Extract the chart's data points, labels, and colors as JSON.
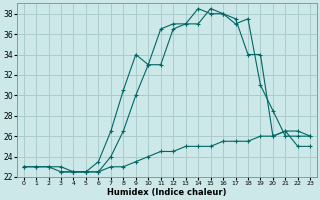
{
  "xlabel": "Humidex (Indice chaleur)",
  "ylabel": "",
  "bg_color": "#cce8e8",
  "grid_color": "#aacccc",
  "line_color": "#006666",
  "xlim": [
    -0.5,
    23.5
  ],
  "ylim": [
    22,
    39
  ],
  "xticks": [
    0,
    1,
    2,
    3,
    4,
    5,
    6,
    7,
    8,
    9,
    10,
    11,
    12,
    13,
    14,
    15,
    16,
    17,
    18,
    19,
    20,
    21,
    22,
    23
  ],
  "yticks": [
    22,
    24,
    26,
    28,
    30,
    32,
    34,
    36,
    38
  ],
  "line1_x": [
    0,
    1,
    2,
    3,
    4,
    5,
    6,
    7,
    8,
    9,
    10,
    11,
    12,
    13,
    14,
    15,
    16,
    17,
    18,
    19,
    20,
    21,
    22,
    23
  ],
  "line1_y": [
    23,
    23,
    23,
    23,
    22.5,
    22.5,
    22.5,
    23,
    23,
    23.5,
    24,
    24.5,
    24.5,
    25,
    25,
    25,
    25.5,
    25.5,
    25.5,
    26,
    26,
    26.5,
    25,
    25
  ],
  "line2_x": [
    0,
    1,
    2,
    3,
    4,
    5,
    6,
    7,
    8,
    9,
    10,
    11,
    12,
    13,
    14,
    15,
    16,
    17,
    18,
    19,
    20,
    21,
    22,
    23
  ],
  "line2_y": [
    23,
    23,
    23,
    22.5,
    22.5,
    22.5,
    23.5,
    26.5,
    30.5,
    34,
    33,
    33,
    36.5,
    37,
    37,
    38.5,
    38,
    37.5,
    34,
    34,
    26,
    26.5,
    26.5,
    26
  ],
  "line3_x": [
    3,
    4,
    5,
    6,
    7,
    8,
    9,
    10,
    11,
    12,
    13,
    14,
    15,
    16,
    17,
    18,
    19,
    20,
    21,
    22,
    23
  ],
  "line3_y": [
    22.5,
    22.5,
    22.5,
    22.5,
    24,
    26.5,
    30,
    33,
    36.5,
    37,
    37,
    38.5,
    38,
    38,
    37,
    37.5,
    31,
    28.5,
    26,
    26,
    26
  ]
}
